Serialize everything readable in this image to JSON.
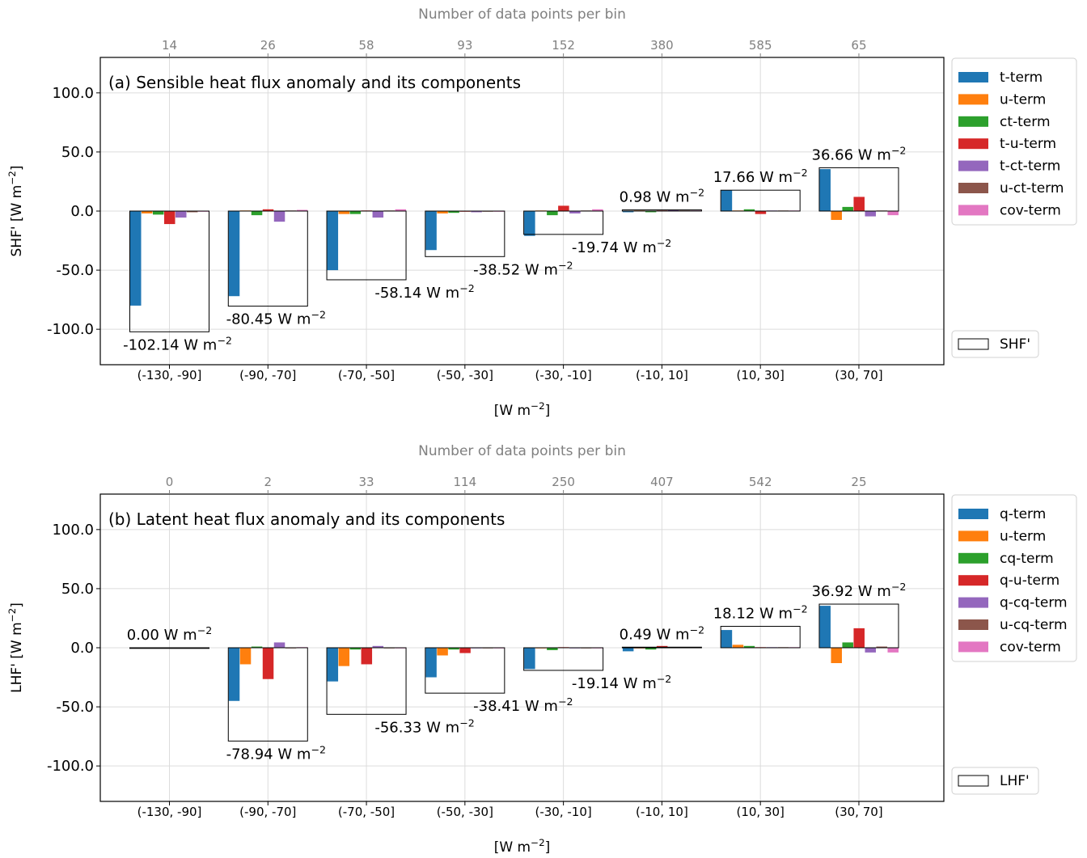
{
  "chart_data": [
    {
      "type": "bar",
      "panel_title": "(a) Sensible heat flux anomaly and its components",
      "top_xlabel": "Number of data points per bin",
      "top_ticks": [
        "14",
        "26",
        "58",
        "93",
        "152",
        "380",
        "585",
        "65"
      ],
      "categories": [
        "(-130, -90]",
        "(-90, -70]",
        "(-70, -50]",
        "(-50, -30]",
        "(-30, -10]",
        "(-10, 10]",
        "(10, 30]",
        "(30, 70]"
      ],
      "xlabel_base": "[W m",
      "xlabel_sup": "−2",
      "xlabel_end": "]",
      "ylabel_base": "SHF' [W m",
      "ylabel_sup": "−2",
      "ylabel_end": "]",
      "ylim": [
        -130,
        130
      ],
      "yticks": [
        -100,
        -50,
        0,
        50,
        100
      ],
      "ytick_labels": [
        "-100.0",
        "-50.0",
        "0.0",
        "50.0",
        "100.0"
      ],
      "grid": true,
      "legend_position": "outside-right-top",
      "series": [
        {
          "name": "t-term",
          "color": "#1f77b4",
          "values": [
            -80,
            -72,
            -50,
            -33,
            -21,
            -1,
            17.5,
            35.5
          ]
        },
        {
          "name": "u-term",
          "color": "#ff7f0e",
          "values": [
            -2,
            0.5,
            -2.5,
            -2,
            0.5,
            0.5,
            0.5,
            -7.5
          ]
        },
        {
          "name": "ct-term",
          "color": "#2ca02c",
          "values": [
            -3,
            -3.5,
            -2.5,
            -1.5,
            -3.5,
            -1,
            1.5,
            3.5
          ]
        },
        {
          "name": "t-u-term",
          "color": "#d62728",
          "values": [
            -11,
            1.5,
            0.5,
            -0.5,
            4.5,
            0.5,
            -2.5,
            12
          ]
        },
        {
          "name": "t-ct-term",
          "color": "#9467bd",
          "values": [
            -5.5,
            -9,
            -5.5,
            -1,
            -2,
            1,
            0.5,
            -4.5
          ]
        },
        {
          "name": "u-ct-term",
          "color": "#8c564b",
          "values": [
            -1,
            0.5,
            0.5,
            -0.5,
            0.5,
            0.5,
            0.5,
            0.5
          ]
        },
        {
          "name": "cov-term",
          "color": "#e377c2",
          "values": [
            -0.5,
            1,
            1.5,
            -0.5,
            1.5,
            0.5,
            0.5,
            -3.5
          ]
        }
      ],
      "total": {
        "name": "SHF'",
        "values": [
          -102.14,
          -80.45,
          -58.14,
          -38.52,
          -19.74,
          0.98,
          17.66,
          36.66
        ],
        "labels": [
          "-102.14 W m",
          "-80.45 W m",
          "-58.14 W m",
          "-38.52 W m",
          "-19.74 W m",
          "0.98 W m",
          "17.66 W m",
          "36.66 W m"
        ],
        "label_sup": "−2"
      }
    },
    {
      "type": "bar",
      "panel_title": "(b) Latent heat flux anomaly and its components",
      "top_xlabel": "Number of data points per bin",
      "top_ticks": [
        "0",
        "2",
        "33",
        "114",
        "250",
        "407",
        "542",
        "25"
      ],
      "categories": [
        "(-130, -90]",
        "(-90, -70]",
        "(-70, -50]",
        "(-50, -30]",
        "(-30, -10]",
        "(-10, 10]",
        "(10, 30]",
        "(30, 70]"
      ],
      "xlabel_base": "[W m",
      "xlabel_sup": "−2",
      "xlabel_end": "]",
      "ylabel_base": "LHF' [W m",
      "ylabel_sup": "−2",
      "ylabel_end": "]",
      "ylim": [
        -130,
        130
      ],
      "yticks": [
        -100,
        -50,
        0,
        50,
        100
      ],
      "ytick_labels": [
        "-100.0",
        "-50.0",
        "0.0",
        "50.0",
        "100.0"
      ],
      "grid": true,
      "legend_position": "outside-right-top",
      "series": [
        {
          "name": "q-term",
          "color": "#1f77b4",
          "values": [
            0,
            -45,
            -28.5,
            -25,
            -18,
            -3,
            15,
            35.5
          ]
        },
        {
          "name": "u-term",
          "color": "#ff7f0e",
          "values": [
            0,
            -14,
            -15.5,
            -6.5,
            -0.5,
            -0.5,
            2.5,
            -13
          ]
        },
        {
          "name": "cq-term",
          "color": "#2ca02c",
          "values": [
            0,
            1,
            -1.5,
            -1.5,
            -2,
            -1.5,
            1.5,
            4.5
          ]
        },
        {
          "name": "q-u-term",
          "color": "#d62728",
          "values": [
            0,
            -26.5,
            -14,
            -4.5,
            0.5,
            1.5,
            0.5,
            16.5
          ]
        },
        {
          "name": "q-cq-term",
          "color": "#9467bd",
          "values": [
            0,
            4.5,
            1.5,
            -0.5,
            -0.5,
            0.5,
            0.5,
            -4
          ]
        },
        {
          "name": "u-cq-term",
          "color": "#8c564b",
          "values": [
            0,
            -0.5,
            -0.5,
            -0.5,
            -0.5,
            0.5,
            0.5,
            1
          ]
        },
        {
          "name": "cov-term",
          "color": "#e377c2",
          "values": [
            0,
            0.5,
            -0.5,
            -0.5,
            -0.5,
            0.5,
            0.5,
            -4
          ]
        }
      ],
      "total": {
        "name": "LHF'",
        "values": [
          0.0,
          -78.94,
          -56.33,
          -38.41,
          -19.14,
          0.49,
          18.12,
          36.92
        ],
        "labels": [
          "0.00 W m",
          "-78.94 W m",
          "-56.33 W m",
          "-38.41 W m",
          "-19.14 W m",
          "0.49 W m",
          "18.12 W m",
          "36.92 W m"
        ],
        "label_sup": "−2"
      }
    }
  ]
}
